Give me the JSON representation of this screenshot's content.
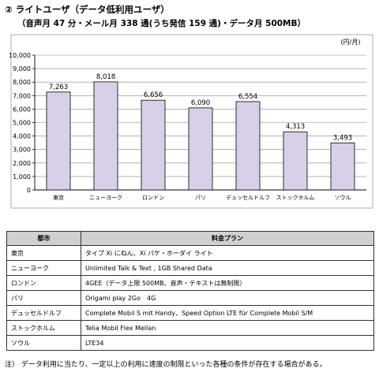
{
  "header": {
    "title": "② ライトユーザ（データ低利用ユーザ）",
    "subtitle": "（音声月 47 分・メール月 338 通(うち発信 159 通)・データ月 500MB）"
  },
  "chart_data": {
    "type": "bar",
    "unit_label": "(円/月)",
    "categories": [
      "東京",
      "ニューヨーク",
      "ロンドン",
      "パリ",
      "デュッセルドルフ",
      "ストックホルム",
      "ソウル"
    ],
    "values": [
      7263,
      8018,
      6656,
      6090,
      6554,
      4313,
      3493
    ],
    "value_labels": [
      "7,263",
      "8,018",
      "6,656",
      "6,090",
      "6,554",
      "4,313",
      "3,493"
    ],
    "ylim": [
      0,
      10000
    ],
    "yticks": [
      0,
      1000,
      2000,
      3000,
      4000,
      5000,
      6000,
      7000,
      8000,
      9000,
      10000
    ],
    "ytick_labels": [
      "0",
      "1,000",
      "2,000",
      "3,000",
      "4,000",
      "5,000",
      "6,000",
      "7,000",
      "8,000",
      "9,000",
      "10,000"
    ],
    "bar_color": "#d8d0e8",
    "grid": true
  },
  "table": {
    "headers": [
      "都市",
      "料金プラン"
    ],
    "rows": [
      [
        "東京",
        "タイプ Xi にねん、Xi パケ・ホーダイ ライト"
      ],
      [
        "ニューヨーク",
        "Unlimited Talk & Text , 1GB Shared Data"
      ],
      [
        "ロンドン",
        "4GEE（データ上限 500MB、音声・テキストは無制限）"
      ],
      [
        "パリ",
        "Origami play 2Go　4G"
      ],
      [
        "デュッセルドルフ",
        "Complete Mobil S mit Handy、Speed Option LTE für Complete Mobil S/M"
      ],
      [
        "ストックホルム",
        "Telia Mobil Flex  Mellan"
      ],
      [
        "ソウル",
        "LTE34"
      ]
    ]
  },
  "note": "注）  データ利用に当たり、一定以上の利用に速度の制限といった各種の条件が存在する場合がある。"
}
